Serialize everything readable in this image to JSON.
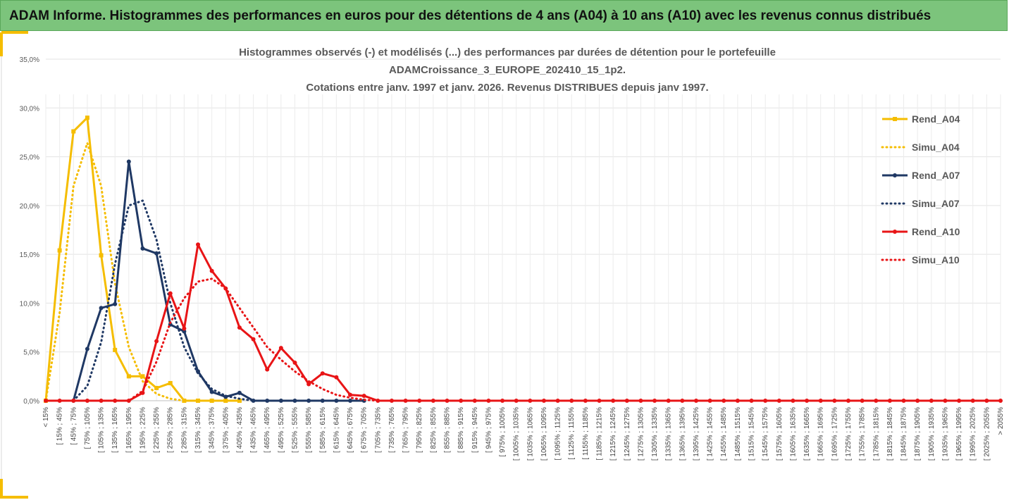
{
  "header": {
    "title": "ADAM Informe. Histogrammes des performances en euros pour des détentions de 4 ans (A04) à 10 ans (A10) avec les revenus connus distribués"
  },
  "chart_data": {
    "type": "line",
    "title": [
      "Histogrammes observés (-) et modélisés (...) des performances par durées de détention pour le portefeuille",
      "ADAMCroissance_3_EUROPE_202410_15_1p2.",
      "Cotations entre janv. 1997 et janv. 2026. Revenus DISTRIBUES depuis janv 1997."
    ],
    "categories": [
      "< 15%",
      "[ 15% ; 45%",
      "[ 45% ; 75%",
      "[ 75% ; 105%",
      "[ 105% ; 135%",
      "[ 135% ; 165%",
      "[ 165% ; 195%",
      "[ 195% ; 225%",
      "[ 225% ; 255%",
      "[ 255% ; 285%",
      "[ 285% ; 315%",
      "[ 315% ; 345%",
      "[ 345% ; 375%",
      "[ 375% ; 405%",
      "[ 405% ; 435%",
      "[ 435% ; 465%",
      "[ 465% ; 495%",
      "[ 495% ; 525%",
      "[ 525% ; 555%",
      "[ 555% ; 585%",
      "[ 585% ; 615%",
      "[ 615% ; 645%",
      "[ 645% ; 675%",
      "[ 675% ; 705%",
      "[ 705% ; 735%",
      "[ 735% ; 765%",
      "[ 765% ; 795%",
      "[ 795% ; 825%",
      "[ 825% ; 855%",
      "[ 855% ; 885%",
      "[ 885% ; 915%",
      "[ 915% ; 945%",
      "[ 945% ; 975%",
      "[ 975% ; 1005%",
      "[ 1005% ; 1035%",
      "[ 1035% ; 1065%",
      "[ 1065% ; 1095%",
      "[ 1095% ; 1125%",
      "[ 1125% ; 1155%",
      "[ 1155% ; 1185%",
      "[ 1185% ; 1215%",
      "[ 1215% ; 1245%",
      "[ 1245% ; 1275%",
      "[ 1275% ; 1305%",
      "[ 1305% ; 1335%",
      "[ 1335% ; 1365%",
      "[ 1365% ; 1395%",
      "[ 1395% ; 1425%",
      "[ 1425% ; 1455%",
      "[ 1455% ; 1485%",
      "[ 1485% ; 1515%",
      "[ 1515% ; 1545%",
      "[ 1545% ; 1575%",
      "[ 1575% ; 1605%",
      "[ 1605% ; 1635%",
      "[ 1635% ; 1665%",
      "[ 1665% ; 1695%",
      "[ 1695% ; 1725%",
      "[ 1725% ; 1755%",
      "[ 1755% ; 1785%",
      "[ 1785% ; 1815%",
      "[ 1815% ; 1845%",
      "[ 1845% ; 1875%",
      "[ 1875% ; 1905%",
      "[ 1905% ; 1935%",
      "[ 1935% ; 1965%",
      "[ 1965% ; 1995%",
      "[ 1995% ; 2025%",
      "[ 2025% ; 2055%",
      "> 2055%"
    ],
    "series": [
      {
        "name": "Rend_A04",
        "color": "#f5bd00",
        "dash": false,
        "marker": "square",
        "values": [
          0,
          15.4,
          27.6,
          29.0,
          14.9,
          5.2,
          2.5,
          2.5,
          1.3,
          1.8,
          0,
          0,
          0,
          0,
          0,
          null,
          null,
          null,
          null,
          null,
          null,
          null,
          null,
          null,
          null,
          null,
          null,
          null,
          null,
          null,
          null,
          null,
          null,
          null,
          null,
          null,
          null,
          null,
          null,
          null,
          null,
          null,
          null,
          null,
          null,
          null,
          null,
          null,
          null,
          null,
          null,
          null,
          null,
          null,
          null,
          null,
          null,
          null,
          null,
          null,
          null,
          null,
          null,
          null,
          null,
          null,
          null,
          null,
          null,
          null
        ]
      },
      {
        "name": "Simu_A04",
        "color": "#f5bd00",
        "dash": true,
        "marker": null,
        "values": [
          0,
          9,
          22,
          26.4,
          22,
          12,
          5.5,
          2,
          0.7,
          0.2,
          0,
          0,
          0,
          0,
          0,
          null,
          null,
          null,
          null,
          null,
          null,
          null,
          null,
          null,
          null,
          null,
          null,
          null,
          null,
          null,
          null,
          null,
          null,
          null,
          null,
          null,
          null,
          null,
          null,
          null,
          null,
          null,
          null,
          null,
          null,
          null,
          null,
          null,
          null,
          null,
          null,
          null,
          null,
          null,
          null,
          null,
          null,
          null,
          null,
          null,
          null,
          null,
          null,
          null,
          null,
          null,
          null,
          null,
          null,
          null
        ]
      },
      {
        "name": "Rend_A07",
        "color": "#1f3864",
        "dash": false,
        "marker": "circle",
        "values": [
          null,
          null,
          0,
          5.3,
          9.5,
          9.9,
          24.5,
          15.6,
          15.1,
          7.8,
          7.1,
          3.0,
          0.9,
          0.4,
          0.8,
          0,
          0,
          0,
          0,
          0,
          0,
          0,
          0,
          0,
          null,
          null,
          null,
          null,
          null,
          null,
          null,
          null,
          null,
          null,
          null,
          null,
          null,
          null,
          null,
          null,
          null,
          null,
          null,
          null,
          null,
          null,
          null,
          null,
          null,
          null,
          null,
          null,
          null,
          null,
          null,
          null,
          null,
          null,
          null,
          null,
          null,
          null,
          null,
          null,
          null,
          null,
          null,
          null,
          null,
          null
        ]
      },
      {
        "name": "Simu_A07",
        "color": "#1f3864",
        "dash": true,
        "marker": null,
        "values": [
          null,
          null,
          0,
          1.5,
          6,
          14,
          20,
          20.5,
          16.5,
          10,
          5.5,
          2.8,
          1.2,
          0.5,
          0.2,
          0,
          0,
          0,
          0,
          0,
          0,
          0,
          0,
          0,
          null,
          null,
          null,
          null,
          null,
          null,
          null,
          null,
          null,
          null,
          null,
          null,
          null,
          null,
          null,
          null,
          null,
          null,
          null,
          null,
          null,
          null,
          null,
          null,
          null,
          null,
          null,
          null,
          null,
          null,
          null,
          null,
          null,
          null,
          null,
          null,
          null,
          null,
          null,
          null,
          null,
          null,
          null,
          null,
          null,
          null
        ]
      },
      {
        "name": "Rend_A10",
        "color": "#e81416",
        "dash": false,
        "marker": "circle",
        "values": [
          0,
          0,
          0,
          0,
          0,
          0,
          0,
          0.8,
          6.1,
          11.0,
          7.4,
          16.0,
          13.3,
          11.5,
          7.5,
          6.3,
          3.2,
          5.4,
          3.9,
          1.7,
          2.8,
          2.4,
          0.6,
          0.5,
          0,
          0,
          0,
          0,
          0,
          0,
          0,
          0,
          0,
          0,
          0,
          0,
          0,
          0,
          0,
          0,
          0,
          0,
          0,
          0,
          0,
          0,
          0,
          0,
          0,
          0,
          0,
          0,
          0,
          0,
          0,
          0,
          0,
          0,
          0,
          0,
          0,
          0,
          0,
          0,
          0,
          0,
          0,
          0,
          0,
          0
        ]
      },
      {
        "name": "Simu_A10",
        "color": "#e81416",
        "dash": true,
        "marker": null,
        "values": [
          0,
          0,
          0,
          0,
          0,
          0,
          0,
          1.0,
          4,
          8,
          10.5,
          12.2,
          12.5,
          11.5,
          9.5,
          7.5,
          5.5,
          4.2,
          3.0,
          2.0,
          1.2,
          0.6,
          0.3,
          0.1,
          0,
          0,
          0,
          0,
          0,
          0,
          0,
          0,
          0,
          0,
          0,
          0,
          0,
          0,
          0,
          0,
          0,
          0,
          0,
          0,
          0,
          0,
          0,
          0,
          0,
          0,
          0,
          0,
          0,
          0,
          0,
          0,
          0,
          0,
          0,
          0,
          0,
          0,
          0,
          0,
          0,
          0,
          0,
          0,
          0,
          0
        ]
      }
    ],
    "ylim": [
      0,
      35
    ],
    "yticks": [
      {
        "value": 0,
        "label": "0,0%"
      },
      {
        "value": 5,
        "label": "5,0%"
      },
      {
        "value": 10,
        "label": "10,0%"
      },
      {
        "value": 15,
        "label": "15,0%"
      },
      {
        "value": 20,
        "label": "20,0%"
      },
      {
        "value": 25,
        "label": "25,0%"
      },
      {
        "value": 30,
        "label": "30,0%"
      },
      {
        "value": 35,
        "label": "35,0%"
      }
    ],
    "grid": true,
    "legend": "right"
  }
}
